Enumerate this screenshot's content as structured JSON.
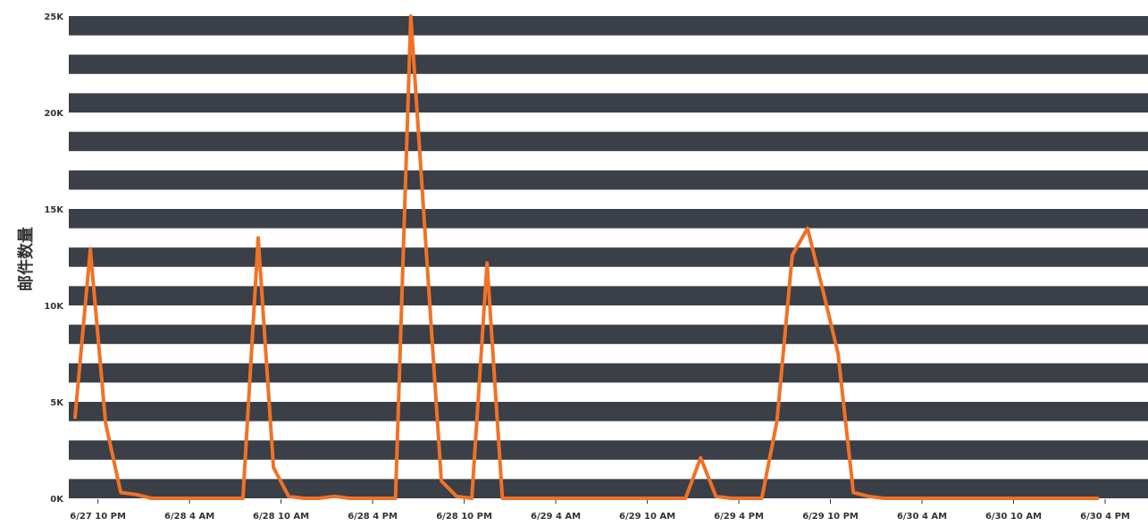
{
  "chart_data": {
    "type": "line",
    "title": "",
    "xlabel": "",
    "ylabel": "邮件数量",
    "ylim": [
      0,
      25000
    ],
    "yticks": [
      {
        "value": 0,
        "label": "0K"
      },
      {
        "value": 5000,
        "label": "5K"
      },
      {
        "value": 10000,
        "label": "10K"
      },
      {
        "value": 15000,
        "label": "15K"
      },
      {
        "value": 20000,
        "label": "20K"
      },
      {
        "value": 25000,
        "label": "25K"
      }
    ],
    "xlim": [
      "2023-06-27T20:30",
      "2023-06-30T16:00"
    ],
    "xticks": [
      {
        "value": "2023-06-27T22:00",
        "label": "6/27 10 PM"
      },
      {
        "value": "2023-06-28T04:00",
        "label": "6/28 4 AM"
      },
      {
        "value": "2023-06-28T10:00",
        "label": "6/28 10 AM"
      },
      {
        "value": "2023-06-28T16:00",
        "label": "6/28 4 PM"
      },
      {
        "value": "2023-06-28T22:00",
        "label": "6/28 10 PM"
      },
      {
        "value": "2023-06-29T04:00",
        "label": "6/29 4 AM"
      },
      {
        "value": "2023-06-29T10:00",
        "label": "6/29 10 AM"
      },
      {
        "value": "2023-06-29T16:00",
        "label": "6/29 4 PM"
      },
      {
        "value": "2023-06-29T22:00",
        "label": "6/29 10 PM"
      },
      {
        "value": "2023-06-30T04:00",
        "label": "6/30 4 AM"
      },
      {
        "value": "2023-06-30T10:00",
        "label": "6/30 10 AM"
      },
      {
        "value": "2023-06-30T16:00",
        "label": "6/30 4 PM"
      }
    ],
    "grid": "horizontal bands",
    "colors": {
      "line": "#f07226",
      "band": "#3a3f48",
      "background": "#ffffff"
    },
    "series": [
      {
        "x": [
          "2023-06-27T20:30",
          "2023-06-27T21:30",
          "2023-06-27T22:30",
          "2023-06-27T23:30",
          "2023-06-28T00:30",
          "2023-06-28T01:30",
          "2023-06-28T02:30",
          "2023-06-28T03:30",
          "2023-06-28T04:30",
          "2023-06-28T05:30",
          "2023-06-28T06:30",
          "2023-06-28T07:30",
          "2023-06-28T08:30",
          "2023-06-28T09:30",
          "2023-06-28T10:30",
          "2023-06-28T11:30",
          "2023-06-28T12:30",
          "2023-06-28T13:30",
          "2023-06-28T14:30",
          "2023-06-28T15:30",
          "2023-06-28T16:30",
          "2023-06-28T17:30",
          "2023-06-28T18:30",
          "2023-06-28T19:30",
          "2023-06-28T20:30",
          "2023-06-28T21:30",
          "2023-06-28T22:30",
          "2023-06-28T23:30",
          "2023-06-29T00:30",
          "2023-06-29T01:30",
          "2023-06-29T02:30",
          "2023-06-29T03:30",
          "2023-06-29T04:30",
          "2023-06-29T05:30",
          "2023-06-29T06:30",
          "2023-06-29T07:30",
          "2023-06-29T08:30",
          "2023-06-29T09:30",
          "2023-06-29T10:30",
          "2023-06-29T11:30",
          "2023-06-29T12:30",
          "2023-06-29T13:30",
          "2023-06-29T14:30",
          "2023-06-29T15:30",
          "2023-06-29T16:30",
          "2023-06-29T17:30",
          "2023-06-29T18:30",
          "2023-06-29T19:30",
          "2023-06-29T20:30",
          "2023-06-29T21:30",
          "2023-06-29T22:30",
          "2023-06-29T23:30",
          "2023-06-30T00:30",
          "2023-06-30T01:30",
          "2023-06-30T02:30",
          "2023-06-30T03:30",
          "2023-06-30T04:30",
          "2023-06-30T05:30",
          "2023-06-30T06:30",
          "2023-06-30T07:30",
          "2023-06-30T08:30",
          "2023-06-30T09:30",
          "2023-06-30T10:30",
          "2023-06-30T11:30",
          "2023-06-30T12:30",
          "2023-06-30T13:30",
          "2023-06-30T14:30",
          "2023-06-30T15:30"
        ],
        "values": [
          4200,
          12900,
          3900,
          300,
          200,
          0,
          0,
          0,
          0,
          0,
          0,
          0,
          13500,
          1600,
          100,
          0,
          0,
          100,
          0,
          0,
          0,
          0,
          25000,
          13000,
          900,
          100,
          0,
          12200,
          0,
          0,
          0,
          0,
          0,
          0,
          0,
          0,
          0,
          0,
          0,
          0,
          0,
          2100,
          100,
          0,
          0,
          0,
          4000,
          12600,
          14000,
          10800,
          7500,
          300,
          100,
          0,
          0,
          0,
          0,
          0,
          0,
          0,
          0,
          0,
          0,
          0,
          0,
          0,
          0,
          0
        ]
      }
    ]
  }
}
